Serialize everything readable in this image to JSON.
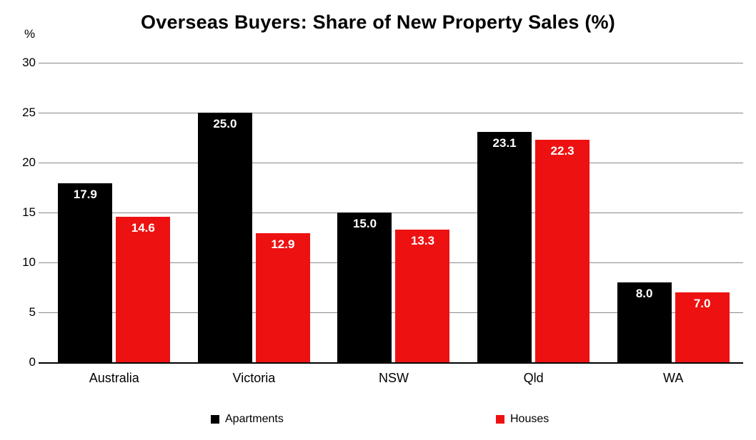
{
  "chart_data": {
    "type": "bar",
    "title": "Overseas Buyers: Share of New Property Sales (%)",
    "ylabel": "%",
    "xlabel": "",
    "categories": [
      "Australia",
      "Victoria",
      "NSW",
      "Qld",
      "WA"
    ],
    "series": [
      {
        "name": "Apartments",
        "color": "#000000",
        "values": [
          17.9,
          25.0,
          15.0,
          23.1,
          8.0
        ],
        "labels": [
          "17.9",
          "25.0",
          "15.0",
          "23.1",
          "8.0"
        ]
      },
      {
        "name": "Houses",
        "color": "#ee1111",
        "values": [
          14.6,
          12.9,
          13.3,
          22.3,
          7.0
        ],
        "labels": [
          "14.6",
          "12.9",
          "13.3",
          "22.3",
          "7.0"
        ]
      }
    ],
    "ylim": [
      0,
      30
    ],
    "yticks": [
      0,
      5,
      10,
      15,
      20,
      25,
      30
    ],
    "grid": true,
    "legend_position": "bottom",
    "value_label_color": "#ffffff"
  },
  "legend": {
    "items": [
      {
        "label": "Apartments",
        "color": "#000000"
      },
      {
        "label": "Houses",
        "color": "#ee1111"
      }
    ]
  }
}
